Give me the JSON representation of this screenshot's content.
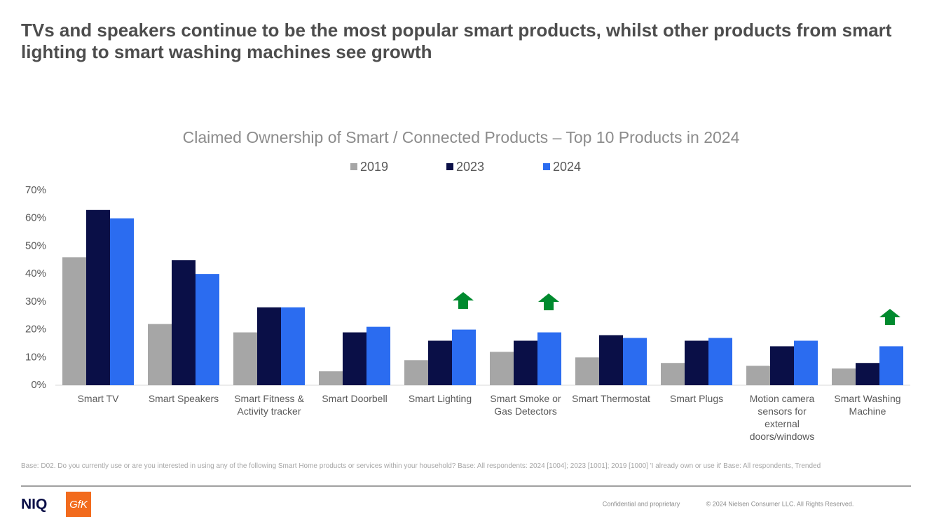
{
  "header": {
    "title": "TVs and speakers continue to be the most popular smart products, whilst other products from smart lighting to smart washing machines see growth"
  },
  "chart_data": {
    "type": "bar",
    "title": "Claimed Ownership of Smart / Connected Products – Top 10 Products in 2024",
    "categories": [
      "Smart TV",
      "Smart Speakers",
      "Smart Fitness & Activity tracker",
      "Smart Doorbell",
      "Smart Lighting",
      "Smart Smoke or Gas Detectors",
      "Smart Thermostat",
      "Smart Plugs",
      "Motion camera sensors for external doors/windows",
      "Smart Washing Machine"
    ],
    "series": [
      {
        "name": "2019",
        "color": "#a6a6a6",
        "values": [
          46,
          22,
          19,
          5,
          9,
          12,
          10,
          8,
          7,
          6
        ]
      },
      {
        "name": "2023",
        "color": "#0a0f47",
        "values": [
          63,
          45,
          28,
          19,
          16,
          16,
          18,
          16,
          14,
          8
        ]
      },
      {
        "name": "2024",
        "color": "#2b6cf0",
        "values": [
          60,
          40,
          28,
          21,
          20,
          19,
          17,
          17,
          16,
          14
        ]
      }
    ],
    "ylim": [
      0,
      70
    ],
    "yticks": [
      {
        "value": 0,
        "label": "0%"
      },
      {
        "value": 10,
        "label": "10%"
      },
      {
        "value": 20,
        "label": "20%"
      },
      {
        "value": 30,
        "label": "30%"
      },
      {
        "value": 40,
        "label": "40%"
      },
      {
        "value": 50,
        "label": "50%"
      },
      {
        "value": 60,
        "label": "60%"
      },
      {
        "value": 70,
        "label": "70%"
      }
    ],
    "grid": false,
    "legend": "top"
  },
  "footer": {
    "base": "Base: D02. Do you currently use or are you interested in using any of the following Smart Home products or services within your household? Base: All respondents: 2024 [1004]; 2023 [1001]; 2019 [1000] 'I already own or use it' Base: All respondents, Trended",
    "logo_left": "NIQ",
    "logo_right": "GfK",
    "confidential": "Confidential and proprietary",
    "copyright": "© 2024 Nielsen Consumer LLC. All Rights Reserved."
  }
}
